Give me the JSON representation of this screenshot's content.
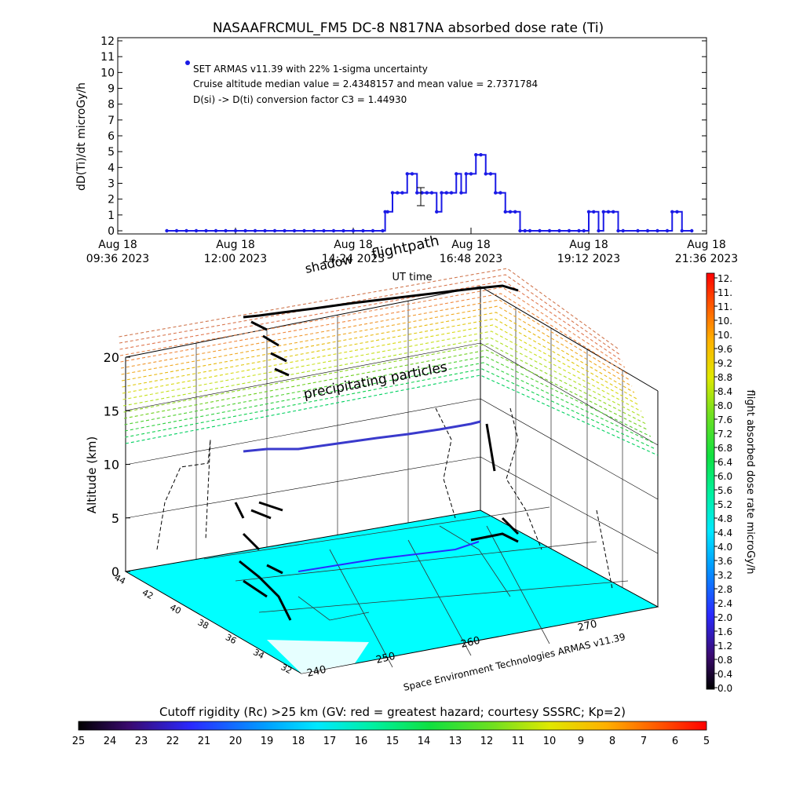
{
  "chart_data": [
    {
      "type": "scatter",
      "title": "NASAAFRCMUL_FM5 DC-8   N817NA absorbed dose rate (Ti)",
      "ylabel": "dD(Ti)/dt microGy/h",
      "xlabel": "UT time",
      "ylim": [
        0,
        12
      ],
      "yticks": [
        "0",
        "1",
        "2",
        "3",
        "4",
        "5",
        "6",
        "7",
        "8",
        "9",
        "10",
        "11",
        "12"
      ],
      "xticks": [
        {
          "top": "Aug 18",
          "bottom": "09:36 2023"
        },
        {
          "top": "Aug 18",
          "bottom": "12:00 2023"
        },
        {
          "top": "Aug 18",
          "bottom": "14:24 2023"
        },
        {
          "top": "Aug 18",
          "bottom": "16:48 2023"
        },
        {
          "top": "Aug 18",
          "bottom": "19:12 2023"
        },
        {
          "top": "Aug 18",
          "bottom": "21:36 2023"
        }
      ],
      "annotations": [
        "SET ARMAS v11.39 with 22% 1-sigma uncertainty",
        "Cruise altitude median value = 2.4348157 and mean value = 2.7371784",
        "D(si) -> D(ti) conversion factor C3 = 1.44930"
      ],
      "series": [
        {
          "x_hours": [
            10.6,
            10.8,
            11.0,
            11.2,
            11.4,
            11.6,
            11.8,
            12.0,
            12.2,
            12.4,
            12.6,
            12.8,
            13.0,
            13.2,
            13.4,
            13.6,
            13.8,
            14.0,
            14.2,
            14.4,
            14.6,
            14.8,
            15.0,
            15.05,
            15.1,
            15.2,
            15.3,
            15.4,
            15.5,
            15.6,
            15.7,
            15.8,
            15.9,
            16.0,
            16.1,
            16.2,
            16.3,
            16.4,
            16.5,
            16.6,
            16.7,
            16.8,
            16.9,
            17.0,
            17.1,
            17.2,
            17.3,
            17.4,
            17.5,
            17.6,
            17.7,
            17.8,
            17.9,
            18.0,
            18.2,
            18.4,
            18.6,
            18.8,
            19.0,
            19.1,
            19.2,
            19.3,
            19.4,
            19.5,
            19.6,
            19.7,
            19.8,
            19.9,
            20.2,
            20.4,
            20.6,
            20.8,
            20.9,
            21.0,
            21.1,
            21.3
          ],
          "y": [
            0,
            0,
            0,
            0,
            0,
            0,
            0,
            0,
            0,
            0,
            0,
            0,
            0,
            0,
            0,
            0,
            0,
            0,
            0,
            0,
            0,
            0,
            0,
            1.2,
            1.2,
            2.4,
            2.4,
            2.4,
            3.6,
            3.6,
            2.4,
            2.4,
            2.4,
            2.4,
            1.2,
            2.4,
            2.4,
            2.4,
            3.6,
            2.4,
            3.6,
            3.6,
            4.8,
            4.8,
            3.6,
            3.6,
            2.4,
            2.4,
            1.2,
            1.2,
            1.2,
            0,
            0,
            0,
            0,
            0,
            0,
            0,
            0,
            0,
            1.2,
            1.2,
            0,
            1.2,
            1.2,
            1.2,
            0,
            0,
            0,
            0,
            0,
            0,
            1.2,
            1.2,
            0,
            0
          ]
        }
      ]
    },
    {
      "type": "3d-flight-map",
      "zlabel": "Altitude (km)",
      "zticks": [
        "0",
        "5",
        "10",
        "15",
        "20"
      ],
      "latitude_ticks": [
        "44",
        "42",
        "40",
        "38",
        "36",
        "34",
        "32"
      ],
      "longitude_ticks": [
        "240",
        "250",
        "260",
        "270"
      ],
      "labels": {
        "flightpath": "flightpath",
        "shadow": "shadow",
        "precipitating": "precipitating particles",
        "credit": "Space Environment Technologies ARMAS v11.39"
      }
    },
    {
      "type": "colorbar",
      "orientation": "vertical",
      "label": "flight absorbed dose rate microGy/h",
      "ticks": [
        "12.",
        "11.",
        "11.",
        "10.",
        "10.",
        "9.6",
        "9.2",
        "8.8",
        "8.4",
        "8.0",
        "7.6",
        "7.2",
        "6.8",
        "6.4",
        "6.0",
        "5.6",
        "5.2",
        "4.8",
        "4.4",
        "4.0",
        "3.6",
        "3.2",
        "2.8",
        "2.4",
        "2.0",
        "1.6",
        "1.2",
        "0.8",
        "0.4",
        "0.0"
      ]
    },
    {
      "type": "colorbar",
      "orientation": "horizontal",
      "label": "Cutoff rigidity (Rc) >25 km (GV: red = greatest hazard; courtesy SSSRC; Kp=2)",
      "ticks": [
        "25",
        "24",
        "23",
        "22",
        "21",
        "20",
        "19",
        "18",
        "17",
        "16",
        "15",
        "14",
        "13",
        "12",
        "11",
        "10",
        "9",
        "8",
        "7",
        "6",
        "5"
      ]
    }
  ],
  "colors": {
    "series_marker": "#1a1ae6",
    "map_surface": "#00ffff",
    "flight_track": "#000000",
    "flight_track_cruise": "#3a3acc",
    "error_bar": "#000000"
  }
}
